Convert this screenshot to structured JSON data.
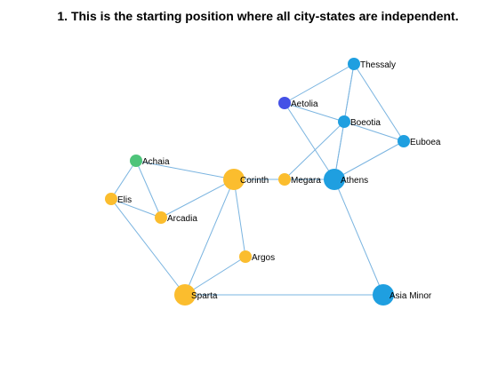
{
  "title": "1. This is the starting position where all city-states are independent.",
  "colors": {
    "edge": "#7ab4e0",
    "blue": "#1f9fe0",
    "dark_blue": "#4451e6",
    "yellow": "#fbbd2e",
    "green": "#4ec47a"
  },
  "nodes": [
    {
      "id": "Thessaly",
      "label": "Thessaly",
      "color": "blue",
      "size": "small"
    },
    {
      "id": "Aetolia",
      "label": "Aetolia",
      "color": "dark_blue",
      "size": "small"
    },
    {
      "id": "Boeotia",
      "label": "Boeotia",
      "color": "blue",
      "size": "small"
    },
    {
      "id": "Euboea",
      "label": "Euboea",
      "color": "blue",
      "size": "small"
    },
    {
      "id": "Achaia",
      "label": "Achaia",
      "color": "green",
      "size": "small"
    },
    {
      "id": "Corinth",
      "label": "Corinth",
      "color": "yellow",
      "size": "large"
    },
    {
      "id": "Megara",
      "label": "Megara",
      "color": "yellow",
      "size": "small"
    },
    {
      "id": "Athens",
      "label": "Athens",
      "color": "blue",
      "size": "large"
    },
    {
      "id": "Elis",
      "label": "Elis",
      "color": "yellow",
      "size": "small"
    },
    {
      "id": "Arcadia",
      "label": "Arcadia",
      "color": "yellow",
      "size": "small"
    },
    {
      "id": "Argos",
      "label": "Argos",
      "color": "yellow",
      "size": "small"
    },
    {
      "id": "Sparta",
      "label": "Sparta",
      "color": "yellow",
      "size": "large"
    },
    {
      "id": "Asia Minor",
      "label": "Asia Minor",
      "color": "blue",
      "size": "large"
    }
  ],
  "edges": [
    [
      "Thessaly",
      "Aetolia"
    ],
    [
      "Thessaly",
      "Boeotia"
    ],
    [
      "Thessaly",
      "Euboea"
    ],
    [
      "Thessaly",
      "Athens"
    ],
    [
      "Aetolia",
      "Boeotia"
    ],
    [
      "Aetolia",
      "Athens"
    ],
    [
      "Boeotia",
      "Euboea"
    ],
    [
      "Boeotia",
      "Megara"
    ],
    [
      "Boeotia",
      "Athens"
    ],
    [
      "Euboea",
      "Athens"
    ],
    [
      "Megara",
      "Athens"
    ],
    [
      "Athens",
      "Asia Minor"
    ],
    [
      "Achaia",
      "Corinth"
    ],
    [
      "Achaia",
      "Elis"
    ],
    [
      "Achaia",
      "Arcadia"
    ],
    [
      "Corinth",
      "Megara"
    ],
    [
      "Corinth",
      "Arcadia"
    ],
    [
      "Corinth",
      "Argos"
    ],
    [
      "Corinth",
      "Sparta"
    ],
    [
      "Elis",
      "Arcadia"
    ],
    [
      "Elis",
      "Sparta"
    ],
    [
      "Argos",
      "Sparta"
    ],
    [
      "Sparta",
      "Asia Minor"
    ]
  ]
}
